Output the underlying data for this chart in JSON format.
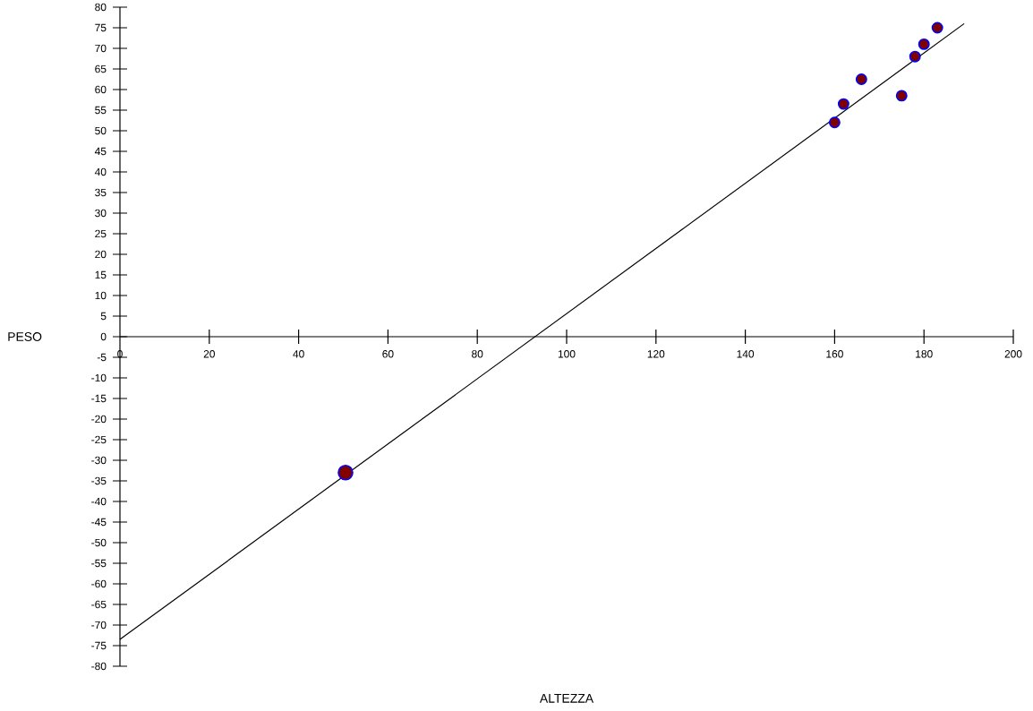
{
  "chart_data": {
    "type": "scatter",
    "xlabel": "ALTEZZA",
    "ylabel": "PESO",
    "xlim": [
      0,
      200
    ],
    "xticks": [
      0,
      20,
      40,
      60,
      80,
      100,
      120,
      140,
      160,
      180,
      200
    ],
    "ylim": [
      -80,
      80
    ],
    "yticks": [
      -80,
      -75,
      -70,
      -65,
      -60,
      -55,
      -50,
      -45,
      -40,
      -35,
      -30,
      -25,
      -20,
      -15,
      -10,
      -5,
      0,
      5,
      10,
      15,
      20,
      25,
      30,
      35,
      40,
      45,
      50,
      55,
      60,
      65,
      70,
      75,
      80
    ],
    "series": [
      {
        "type": "bubble",
        "color": "#800000",
        "x": [
          160,
          162,
          166,
          175,
          178,
          180,
          183,
          50.5
        ],
        "values": [
          52,
          56.5,
          62.5,
          58.5,
          68,
          71,
          75,
          -33
        ],
        "sizes": [
          0.5,
          0.5,
          0.5,
          0.5,
          0.5,
          0.5,
          0.5,
          1
        ]
      },
      {
        "type": "line",
        "color": "#000000",
        "x": [
          0,
          189
        ],
        "values": [
          -73.5,
          76
        ]
      }
    ]
  }
}
